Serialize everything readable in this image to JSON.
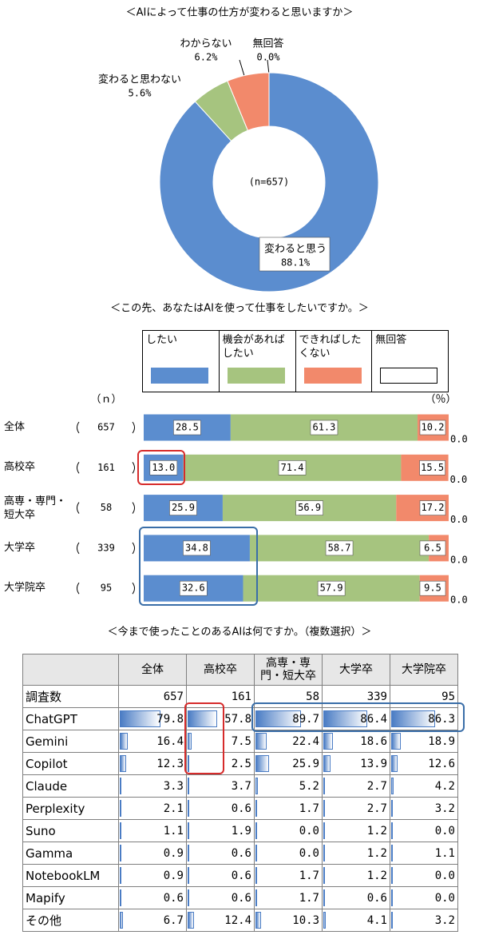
{
  "chart_data": [
    {
      "type": "pie",
      "title": "＜AIによって仕事の仕方が変わると思いますか＞",
      "categories": [
        "変わると思う",
        "変わると思わない",
        "わからない",
        "無回答"
      ],
      "values": [
        88.1,
        5.6,
        6.2,
        0.0
      ],
      "value_labels": [
        "88.1%",
        "5.6%",
        "6.2%",
        "0.0%"
      ],
      "colors": [
        "#5b8dcf",
        "#a6c47f",
        "#f2896b",
        "#ffffff"
      ],
      "center_label": "(n=657)"
    },
    {
      "type": "bar",
      "title": "＜この先、あなたはAIを使って仕事をしたいですか。＞",
      "orientation": "horizontal",
      "stacked": true,
      "categories": [
        "全体",
        "高校卒",
        "高専・専門・短大卒",
        "大学卒",
        "大学院卒"
      ],
      "n_header": "（ｎ）",
      "n": [
        657,
        161,
        58,
        339,
        95
      ],
      "unit_label": "（％）",
      "xlim": [
        0,
        100
      ],
      "series": [
        {
          "name": "したい",
          "color": "#5b8dcf",
          "values": [
            28.5,
            13.0,
            25.9,
            34.8,
            32.6
          ],
          "value_labels": [
            "28.5",
            "13.0",
            "25.9",
            "34.8",
            "32.6"
          ]
        },
        {
          "name": "機会があればしたい",
          "color": "#a6c47f",
          "values": [
            61.3,
            71.4,
            56.9,
            58.7,
            57.9
          ],
          "value_labels": [
            "61.3",
            "71.4",
            "56.9",
            "58.7",
            "57.9"
          ]
        },
        {
          "name": "できればしたくない",
          "color": "#f2896b",
          "values": [
            10.2,
            15.5,
            17.2,
            6.5,
            9.5
          ],
          "value_labels": [
            "10.2",
            "15.5",
            "17.2",
            "6.5",
            "9.5"
          ]
        },
        {
          "name": "無回答",
          "color": "#ffffff",
          "values": [
            0.0,
            0.0,
            0.0,
            0.0,
            0.0
          ],
          "value_labels": [
            "0.0",
            "0.0",
            "0.0",
            "0.0",
            "0.0"
          ]
        }
      ]
    },
    {
      "type": "table",
      "title": "＜今まで使ったことのあるAIは何ですか。（複数選択）＞",
      "columns": [
        "全体",
        "高校卒",
        "高専・専門・短大卒",
        "大学卒",
        "大学院卒"
      ],
      "n_label": "調査数",
      "n": [
        657,
        161,
        58,
        339,
        95
      ],
      "xlim": [
        0,
        100
      ],
      "color": "#4a7cc4",
      "series": [
        {
          "name": "ChatGPT",
          "values": [
            79.8,
            57.8,
            89.7,
            86.4,
            86.3
          ],
          "value_labels": [
            "79.8",
            "57.8",
            "89.7",
            "86.4",
            "86.3"
          ]
        },
        {
          "name": "Gemini",
          "values": [
            16.4,
            7.5,
            22.4,
            18.6,
            18.9
          ],
          "value_labels": [
            "16.4",
            "7.5",
            "22.4",
            "18.6",
            "18.9"
          ]
        },
        {
          "name": "Copilot",
          "values": [
            12.3,
            2.5,
            25.9,
            13.9,
            12.6
          ],
          "value_labels": [
            "12.3",
            "2.5",
            "25.9",
            "13.9",
            "12.6"
          ]
        },
        {
          "name": "Claude",
          "values": [
            3.3,
            3.7,
            5.2,
            2.7,
            4.2
          ],
          "value_labels": [
            "3.3",
            "3.7",
            "5.2",
            "2.7",
            "4.2"
          ]
        },
        {
          "name": "Perplexity",
          "values": [
            2.1,
            0.6,
            1.7,
            2.7,
            3.2
          ],
          "value_labels": [
            "2.1",
            "0.6",
            "1.7",
            "2.7",
            "3.2"
          ]
        },
        {
          "name": "Suno",
          "values": [
            1.1,
            1.9,
            0.0,
            1.2,
            0.0
          ],
          "value_labels": [
            "1.1",
            "1.9",
            "0.0",
            "1.2",
            "0.0"
          ]
        },
        {
          "name": "Gamma",
          "values": [
            0.9,
            0.6,
            0.0,
            1.2,
            1.1
          ],
          "value_labels": [
            "0.9",
            "0.6",
            "0.0",
            "1.2",
            "1.1"
          ]
        },
        {
          "name": "NotebookLM",
          "values": [
            0.9,
            0.6,
            1.7,
            1.2,
            0.0
          ],
          "value_labels": [
            "0.9",
            "0.6",
            "1.7",
            "1.2",
            "0.0"
          ]
        },
        {
          "name": "Mapify",
          "values": [
            0.6,
            0.6,
            1.7,
            0.6,
            0.0
          ],
          "value_labels": [
            "0.6",
            "0.6",
            "1.7",
            "0.6",
            "0.0"
          ]
        },
        {
          "name": "その他",
          "values": [
            6.7,
            12.4,
            10.3,
            4.1,
            3.2
          ],
          "value_labels": [
            "6.7",
            "12.4",
            "10.3",
            "4.1",
            "3.2"
          ]
        }
      ]
    }
  ]
}
